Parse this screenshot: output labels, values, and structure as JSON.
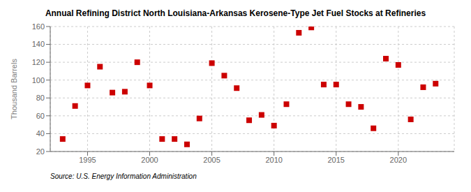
{
  "chart_data": {
    "type": "scatter",
    "title": "Annual Refining District North Louisiana-Arkansas Kerosene-Type Jet Fuel Stocks at Refineries",
    "ylabel": "Thousand Barrels",
    "source": "Source: U.S. Energy Information Administration",
    "x": [
      1993,
      1994,
      1995,
      1996,
      1997,
      1998,
      1999,
      2000,
      2001,
      2002,
      2003,
      2004,
      2005,
      2006,
      2007,
      2008,
      2009,
      2010,
      2011,
      2012,
      2013,
      2014,
      2015,
      2016,
      2017,
      2018,
      2019,
      2020,
      2021,
      2022,
      2023
    ],
    "values": [
      34,
      71,
      94,
      115,
      86,
      87,
      120,
      94,
      34,
      34,
      28,
      57,
      119,
      105,
      91,
      55,
      61,
      49,
      73,
      153,
      159,
      95,
      95,
      73,
      70,
      46,
      124,
      117,
      56,
      92,
      96
    ],
    "color": "#cc0000",
    "marker": "square",
    "xlim": [
      1992.0,
      2024.5
    ],
    "xticks": [
      1995,
      2000,
      2005,
      2010,
      2015,
      2020
    ],
    "ylim": [
      20,
      160
    ],
    "yticks": [
      20,
      40,
      60,
      80,
      100,
      120,
      140,
      160
    ],
    "grid": true
  }
}
